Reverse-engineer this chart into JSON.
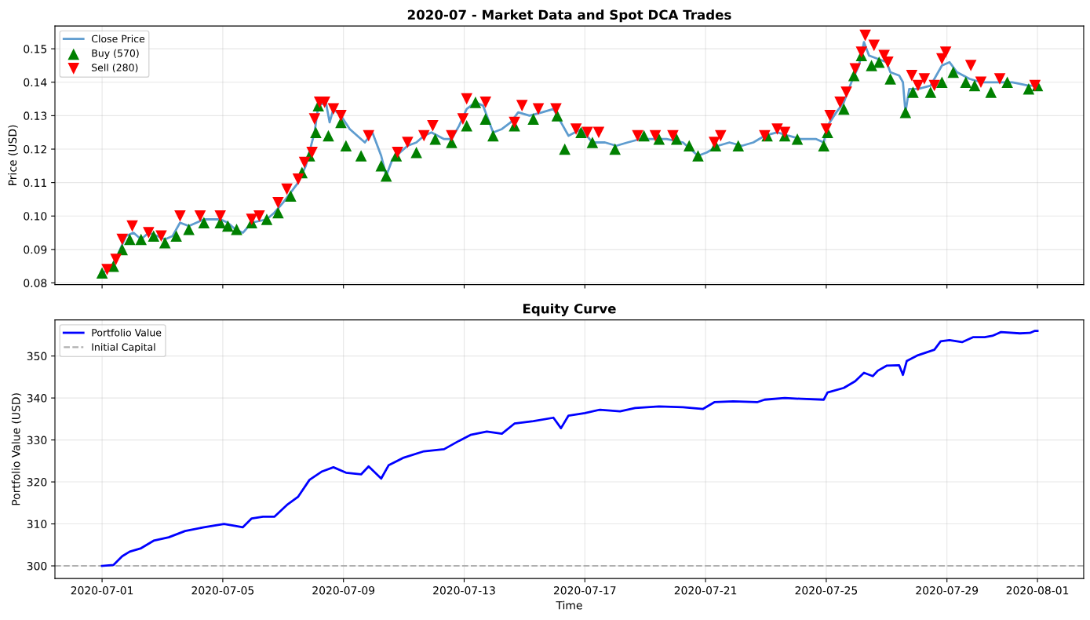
{
  "chart_data": [
    {
      "type": "line",
      "title": "2020-07 - Market Data and Spot DCA Trades",
      "ylabel": "Price (USD)",
      "xlim": [
        "2020-06-29T10:30",
        "2020-08-02T12:45"
      ],
      "xticks": [
        "2020-07-01",
        "2020-07-05",
        "2020-07-09",
        "2020-07-13",
        "2020-07-17",
        "2020-07-21",
        "2020-07-25",
        "2020-07-29",
        "2020-08-01"
      ],
      "ylim": [
        0.0795,
        0.1568
      ],
      "yticks": [
        0.08,
        0.09,
        {
          "value": 0.1,
          "label": "0.10"
        },
        0.11,
        0.12,
        0.13,
        0.14,
        0.15
      ],
      "tick_labels": "y",
      "grid": true,
      "legend": "top left",
      "series": [
        {
          "name": "Close Price",
          "color": "#5e9ccf",
          "line_style": "solid",
          "marker": "none",
          "x": [
            "2020-07-01T00:00",
            "2020-07-01T06:00",
            "2020-07-01T12:00",
            "2020-07-01T19:00",
            "2020-07-02T01:00",
            "2020-07-02T07:00",
            "2020-07-02T13:00",
            "2020-07-02T20:00",
            "2020-07-03T02:00",
            "2020-07-03T08:00",
            "2020-07-03T14:00",
            "2020-07-03T21:00",
            "2020-07-04T09:00",
            "2020-07-04T22:00",
            "2020-07-05T04:00",
            "2020-07-05T10:00",
            "2020-07-05T16:00",
            "2020-07-05T23:00",
            "2020-07-06T11:00",
            "2020-07-06T17:00",
            "2020-07-07T00:00",
            "2020-07-07T06:00",
            "2020-07-07T12:00",
            "2020-07-07T18:00",
            "2020-07-08T01:00",
            "2020-07-08T04:00",
            "2020-07-08T10:00",
            "2020-07-08T13:00",
            "2020-07-08T16:00",
            "2020-07-08T22:00",
            "2020-07-09T05:00",
            "2020-07-09T11:00",
            "2020-07-09T17:00",
            "2020-07-09T23:00",
            "2020-07-10T06:00",
            "2020-07-10T10:00",
            "2020-07-10T15:00",
            "2020-07-10T21:00",
            "2020-07-11T03:00",
            "2020-07-11T10:00",
            "2020-07-11T16:00",
            "2020-07-11T22:00",
            "2020-07-12T08:00",
            "2020-07-12T14:00",
            "2020-07-12T20:00",
            "2020-07-13T02:00",
            "2020-07-13T09:00",
            "2020-07-13T15:00",
            "2020-07-13T23:00",
            "2020-07-14T06:00",
            "2020-07-14T13:00",
            "2020-07-14T19:00",
            "2020-07-15T04:00",
            "2020-07-15T14:00",
            "2020-07-15T23:00",
            "2020-07-16T05:00",
            "2020-07-16T11:00",
            "2020-07-16T21:00",
            "2020-07-17T06:00",
            "2020-07-17T16:00",
            "2020-07-18T01:00",
            "2020-07-18T10:00",
            "2020-07-18T20:00",
            "2020-07-19T05:00",
            "2020-07-19T17:00",
            "2020-07-20T06:00",
            "2020-07-20T18:00",
            "2020-07-21T01:00",
            "2020-07-21T10:00",
            "2020-07-21T19:00",
            "2020-07-22T05:00",
            "2020-07-22T14:00",
            "2020-07-22T23:00",
            "2020-07-23T09:00",
            "2020-07-23T18:00",
            "2020-07-24T04:00",
            "2020-07-24T16:00",
            "2020-07-24T22:00",
            "2020-07-25T01:00",
            "2020-07-25T08:00",
            "2020-07-25T14:00",
            "2020-07-25T20:00",
            "2020-07-26T02:00",
            "2020-07-26T06:00",
            "2020-07-26T10:00",
            "2020-07-26T17:00",
            "2020-07-27T00:00",
            "2020-07-27T03:00",
            "2020-07-27T10:00",
            "2020-07-27T13:00",
            "2020-07-27T15:00",
            "2020-07-27T18:00",
            "2020-07-28T01:00",
            "2020-07-28T11:00",
            "2020-07-28T20:00",
            "2020-07-29T02:00",
            "2020-07-29T08:00",
            "2020-07-29T18:00",
            "2020-07-30T03:00",
            "2020-07-30T16:00",
            "2020-07-31T04:00",
            "2020-07-31T17:00",
            "2020-08-01T00:00"
          ],
          "values": [
            0.083,
            0.084,
            0.088,
            0.094,
            0.095,
            0.093,
            0.095,
            0.094,
            0.093,
            0.094,
            0.098,
            0.097,
            0.099,
            0.099,
            0.098,
            0.096,
            0.095,
            0.098,
            0.099,
            0.101,
            0.104,
            0.107,
            0.11,
            0.115,
            0.125,
            0.133,
            0.134,
            0.128,
            0.132,
            0.13,
            0.126,
            0.124,
            0.122,
            0.125,
            0.118,
            0.112,
            0.117,
            0.119,
            0.121,
            0.122,
            0.124,
            0.125,
            0.123,
            0.123,
            0.127,
            0.132,
            0.134,
            0.133,
            0.125,
            0.126,
            0.128,
            0.131,
            0.13,
            0.131,
            0.132,
            0.128,
            0.124,
            0.126,
            0.122,
            0.122,
            0.121,
            0.122,
            0.123,
            0.123,
            0.123,
            0.122,
            0.118,
            0.119,
            0.121,
            0.122,
            0.121,
            0.122,
            0.124,
            0.125,
            0.124,
            0.123,
            0.123,
            0.122,
            0.127,
            0.131,
            0.134,
            0.14,
            0.145,
            0.152,
            0.148,
            0.147,
            0.146,
            0.143,
            0.142,
            0.14,
            0.131,
            0.138,
            0.138,
            0.139,
            0.145,
            0.146,
            0.143,
            0.141,
            0.14,
            0.14,
            0.14,
            0.139,
            0.139
          ]
        },
        {
          "name": "Buy (570)",
          "type": "scatter",
          "color": "#008000",
          "marker": "triangle",
          "x": [
            "2020-07-01T00:00",
            "2020-07-01T09:00",
            "2020-07-01T16:00",
            "2020-07-01T22:00",
            "2020-07-02T07:00",
            "2020-07-02T17:00",
            "2020-07-03T02:00",
            "2020-07-03T11:00",
            "2020-07-03T21:00",
            "2020-07-04T09:00",
            "2020-07-04T22:00",
            "2020-07-05T04:00",
            "2020-07-05T11:00",
            "2020-07-05T23:00",
            "2020-07-06T11:00",
            "2020-07-06T20:00",
            "2020-07-07T06:00",
            "2020-07-07T15:00",
            "2020-07-07T21:00",
            "2020-07-08T02:00",
            "2020-07-08T04:00",
            "2020-07-08T12:00",
            "2020-07-08T22:00",
            "2020-07-09T02:00",
            "2020-07-09T14:00",
            "2020-07-10T06:00",
            "2020-07-10T10:00",
            "2020-07-10T18:00",
            "2020-07-11T10:00",
            "2020-07-12T01:00",
            "2020-07-12T14:00",
            "2020-07-13T02:00",
            "2020-07-13T09:00",
            "2020-07-13T17:00",
            "2020-07-13T23:00",
            "2020-07-14T16:00",
            "2020-07-15T07:00",
            "2020-07-16T02:00",
            "2020-07-16T08:00",
            "2020-07-16T21:00",
            "2020-07-17T06:00",
            "2020-07-18T00:00",
            "2020-07-18T23:00",
            "2020-07-19T11:00",
            "2020-07-20T01:00",
            "2020-07-20T11:00",
            "2020-07-20T18:00",
            "2020-07-21T08:00",
            "2020-07-22T02:00",
            "2020-07-23T01:00",
            "2020-07-23T15:00",
            "2020-07-24T01:00",
            "2020-07-24T22:00",
            "2020-07-25T01:00",
            "2020-07-25T14:00",
            "2020-07-25T22:00",
            "2020-07-26T04:00",
            "2020-07-26T12:00",
            "2020-07-26T18:00",
            "2020-07-27T03:00",
            "2020-07-27T15:00",
            "2020-07-27T21:00",
            "2020-07-28T11:00",
            "2020-07-28T20:00",
            "2020-07-29T05:00",
            "2020-07-29T15:00",
            "2020-07-29T22:00",
            "2020-07-30T11:00",
            "2020-07-31T00:00",
            "2020-07-31T17:00",
            "2020-08-01T00:00"
          ],
          "values": [
            0.083,
            0.085,
            0.09,
            0.093,
            0.093,
            0.094,
            0.092,
            0.094,
            0.096,
            0.098,
            0.098,
            0.097,
            0.096,
            0.098,
            0.099,
            0.101,
            0.106,
            0.113,
            0.118,
            0.125,
            0.133,
            0.124,
            0.128,
            0.121,
            0.118,
            0.115,
            0.112,
            0.118,
            0.119,
            0.123,
            0.122,
            0.127,
            0.134,
            0.129,
            0.124,
            0.127,
            0.129,
            0.13,
            0.12,
            0.125,
            0.122,
            0.12,
            0.124,
            0.123,
            0.123,
            0.121,
            0.118,
            0.121,
            0.121,
            0.124,
            0.124,
            0.123,
            0.121,
            0.125,
            0.132,
            0.142,
            0.148,
            0.145,
            0.146,
            0.141,
            0.131,
            0.137,
            0.137,
            0.14,
            0.143,
            0.14,
            0.139,
            0.137,
            0.14,
            0.138,
            0.139
          ]
        },
        {
          "name": "Sell (280)",
          "type": "scatter",
          "color": "#ff0000",
          "marker": "triangle-down",
          "x": [
            "2020-07-01T04:00",
            "2020-07-01T11:00",
            "2020-07-01T16:00",
            "2020-07-02T00:00",
            "2020-07-02T13:00",
            "2020-07-02T23:00",
            "2020-07-03T14:00",
            "2020-07-04T06:00",
            "2020-07-04T22:00",
            "2020-07-05T23:00",
            "2020-07-06T05:00",
            "2020-07-06T20:00",
            "2020-07-07T03:00",
            "2020-07-07T12:00",
            "2020-07-07T17:00",
            "2020-07-07T23:00",
            "2020-07-08T01:00",
            "2020-07-08T05:00",
            "2020-07-08T09:00",
            "2020-07-08T16:00",
            "2020-07-08T22:00",
            "2020-07-09T20:00",
            "2020-07-10T19:00",
            "2020-07-11T03:00",
            "2020-07-11T16:00",
            "2020-07-11T23:00",
            "2020-07-12T14:00",
            "2020-07-12T23:00",
            "2020-07-13T02:00",
            "2020-07-13T17:00",
            "2020-07-14T16:00",
            "2020-07-14T22:00",
            "2020-07-15T11:00",
            "2020-07-16T01:00",
            "2020-07-16T17:00",
            "2020-07-17T02:00",
            "2020-07-17T11:00",
            "2020-07-18T18:00",
            "2020-07-19T08:00",
            "2020-07-19T22:00",
            "2020-07-21T07:00",
            "2020-07-21T12:00",
            "2020-07-22T23:00",
            "2020-07-23T09:00",
            "2020-07-23T15:00",
            "2020-07-25T00:00",
            "2020-07-25T03:00",
            "2020-07-25T11:00",
            "2020-07-25T16:00",
            "2020-07-25T23:00",
            "2020-07-26T04:00",
            "2020-07-26T07:00",
            "2020-07-26T14:00",
            "2020-07-26T22:00",
            "2020-07-27T01:00",
            "2020-07-27T20:00",
            "2020-07-28T01:00",
            "2020-07-28T06:00",
            "2020-07-28T14:00",
            "2020-07-28T20:00",
            "2020-07-28T23:00",
            "2020-07-29T19:00",
            "2020-07-30T03:00",
            "2020-07-30T18:00",
            "2020-07-31T22:00"
          ],
          "values": [
            0.084,
            0.087,
            0.093,
            0.097,
            0.095,
            0.094,
            0.1,
            0.1,
            0.1,
            0.099,
            0.1,
            0.104,
            0.108,
            0.111,
            0.116,
            0.119,
            0.129,
            0.134,
            0.134,
            0.132,
            0.13,
            0.124,
            0.119,
            0.122,
            0.124,
            0.127,
            0.124,
            0.129,
            0.135,
            0.134,
            0.128,
            0.133,
            0.132,
            0.132,
            0.126,
            0.125,
            0.125,
            0.124,
            0.124,
            0.124,
            0.122,
            0.124,
            0.124,
            0.126,
            0.125,
            0.126,
            0.13,
            0.134,
            0.137,
            0.144,
            0.149,
            0.154,
            0.151,
            0.148,
            0.146,
            0.142,
            0.139,
            0.141,
            0.139,
            0.147,
            0.149,
            0.145,
            0.14,
            0.141,
            0.139
          ]
        }
      ]
    },
    {
      "type": "line",
      "title": "Equity Curve",
      "xlabel": "Time",
      "ylabel": "Portfolio Value (USD)",
      "xlim": [
        "2020-06-29T10:30",
        "2020-08-02T12:45"
      ],
      "xticks": [
        "2020-07-01",
        "2020-07-05",
        "2020-07-09",
        "2020-07-13",
        "2020-07-17",
        "2020-07-21",
        "2020-07-25",
        "2020-07-29",
        "2020-08-01"
      ],
      "ylim": [
        297.0,
        358.6
      ],
      "yticks": [
        300,
        310,
        320,
        330,
        340,
        350
      ],
      "grid": true,
      "legend": "top left",
      "ref_lines": [
        {
          "axis": "y",
          "value": 300,
          "label": "Initial Capital",
          "color": "#b0b0b0",
          "line_style": "dashed"
        }
      ],
      "series": [
        {
          "name": "Portfolio Value",
          "color": "#0000ff",
          "line_style": "solid",
          "marker": "none",
          "x": [
            "2020-07-01T00:00",
            "2020-07-01T09:00",
            "2020-07-01T16:00",
            "2020-07-01T22:00",
            "2020-07-02T07:00",
            "2020-07-02T17:00",
            "2020-07-03T05:00",
            "2020-07-03T18:00",
            "2020-07-04T09:00",
            "2020-07-05T01:00",
            "2020-07-05T10:00",
            "2020-07-05T16:00",
            "2020-07-05T23:00",
            "2020-07-06T08:00",
            "2020-07-06T17:00",
            "2020-07-07T03:00",
            "2020-07-07T12:00",
            "2020-07-07T21:00",
            "2020-07-08T07:00",
            "2020-07-08T16:00",
            "2020-07-09T02:00",
            "2020-07-09T08:00",
            "2020-07-09T14:00",
            "2020-07-09T20:00",
            "2020-07-10T06:00",
            "2020-07-10T12:00",
            "2020-07-11T00:00",
            "2020-07-11T16:00",
            "2020-07-12T08:00",
            "2020-07-12T20:00",
            "2020-07-13T05:00",
            "2020-07-13T18:00",
            "2020-07-14T06:00",
            "2020-07-14T16:00",
            "2020-07-15T07:00",
            "2020-07-15T23:00",
            "2020-07-16T05:00",
            "2020-07-16T11:00",
            "2020-07-17T00:00",
            "2020-07-17T12:00",
            "2020-07-18T04:00",
            "2020-07-18T16:00",
            "2020-07-19T11:00",
            "2020-07-20T06:00",
            "2020-07-20T22:00",
            "2020-07-21T07:00",
            "2020-07-21T22:00",
            "2020-07-22T17:00",
            "2020-07-22T23:00",
            "2020-07-23T15:00",
            "2020-07-24T04:00",
            "2020-07-24T22:00",
            "2020-07-25T01:00",
            "2020-07-25T14:00",
            "2020-07-25T23:00",
            "2020-07-26T06:00",
            "2020-07-26T13:00",
            "2020-07-26T17:00",
            "2020-07-27T00:00",
            "2020-07-27T10:00",
            "2020-07-27T13:00",
            "2020-07-27T16:00",
            "2020-07-28T01:00",
            "2020-07-28T14:00",
            "2020-07-28T19:00",
            "2020-07-29T02:00",
            "2020-07-29T12:00",
            "2020-07-29T21:00",
            "2020-07-30T06:00",
            "2020-07-30T12:00",
            "2020-07-30T19:00",
            "2020-07-31T10:00",
            "2020-07-31T18:00",
            "2020-07-31T22:00",
            "2020-08-01T00:00"
          ],
          "values": [
            300.0,
            300.2,
            302.3,
            303.4,
            304.2,
            306.0,
            306.8,
            308.3,
            309.2,
            310.0,
            309.5,
            309.2,
            311.3,
            311.7,
            311.7,
            314.5,
            316.5,
            320.5,
            322.5,
            323.5,
            322.2,
            322.0,
            321.8,
            323.7,
            320.8,
            324.0,
            325.8,
            327.3,
            327.8,
            329.8,
            331.2,
            332.0,
            331.5,
            333.9,
            334.5,
            335.3,
            332.8,
            335.8,
            336.4,
            337.2,
            336.8,
            337.6,
            338.0,
            337.8,
            337.4,
            339.0,
            339.2,
            339.0,
            339.6,
            340.0,
            339.8,
            339.6,
            341.3,
            342.4,
            344.0,
            346.0,
            345.2,
            346.5,
            347.7,
            347.8,
            345.5,
            348.8,
            350.2,
            351.5,
            353.5,
            353.8,
            353.3,
            354.5,
            354.5,
            354.8,
            355.7,
            355.4,
            355.5,
            356.0,
            356.0
          ]
        }
      ]
    }
  ]
}
